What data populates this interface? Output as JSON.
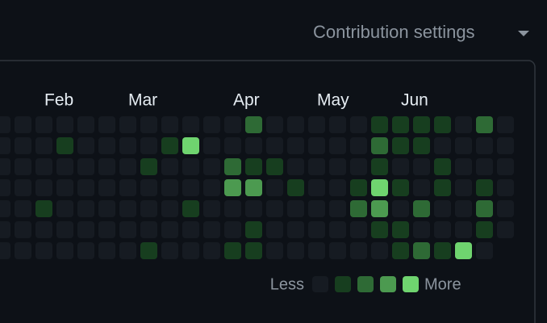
{
  "header": {
    "title": "Contribution settings"
  },
  "graph": {
    "months": [
      "Feb",
      "Mar",
      "Apr",
      "May",
      "Jun"
    ],
    "level_colors": [
      "#161b22",
      "#173e1f",
      "#2e6a35",
      "#4c9a50",
      "#6fd46f"
    ],
    "weeks": [
      [
        0,
        0,
        0,
        0,
        0,
        0,
        0
      ],
      [
        0,
        0,
        0,
        0,
        0,
        0,
        0
      ],
      [
        0,
        0,
        0,
        0,
        1,
        0,
        0
      ],
      [
        0,
        1,
        0,
        0,
        0,
        0,
        0
      ],
      [
        0,
        0,
        0,
        0,
        0,
        0,
        0
      ],
      [
        0,
        0,
        0,
        0,
        0,
        0,
        0
      ],
      [
        0,
        0,
        0,
        0,
        0,
        0,
        0
      ],
      [
        0,
        0,
        1,
        0,
        0,
        0,
        1
      ],
      [
        0,
        1,
        0,
        0,
        0,
        0,
        0
      ],
      [
        0,
        4,
        0,
        0,
        1,
        0,
        0
      ],
      [
        0,
        0,
        0,
        0,
        0,
        0,
        0
      ],
      [
        0,
        0,
        2,
        3,
        0,
        0,
        1
      ],
      [
        2,
        0,
        1,
        3,
        0,
        1,
        1
      ],
      [
        0,
        0,
        1,
        0,
        0,
        0,
        0
      ],
      [
        0,
        0,
        0,
        1,
        0,
        0,
        0
      ],
      [
        0,
        0,
        0,
        0,
        0,
        0,
        0
      ],
      [
        0,
        0,
        0,
        0,
        0,
        0,
        0
      ],
      [
        0,
        0,
        0,
        1,
        2,
        0,
        0
      ],
      [
        1,
        2,
        1,
        4,
        3,
        1,
        0
      ],
      [
        1,
        1,
        0,
        1,
        0,
        1,
        1
      ],
      [
        1,
        1,
        0,
        0,
        2,
        0,
        2
      ],
      [
        1,
        0,
        1,
        1,
        0,
        0,
        1
      ],
      [
        0,
        0,
        0,
        0,
        0,
        0,
        4
      ],
      [
        2,
        0,
        0,
        1,
        2,
        1,
        0
      ],
      [
        0,
        0,
        0,
        0,
        0,
        0,
        null
      ]
    ]
  },
  "legend": {
    "less": "Less",
    "more": "More",
    "levels": [
      0,
      1,
      2,
      3,
      4
    ]
  }
}
